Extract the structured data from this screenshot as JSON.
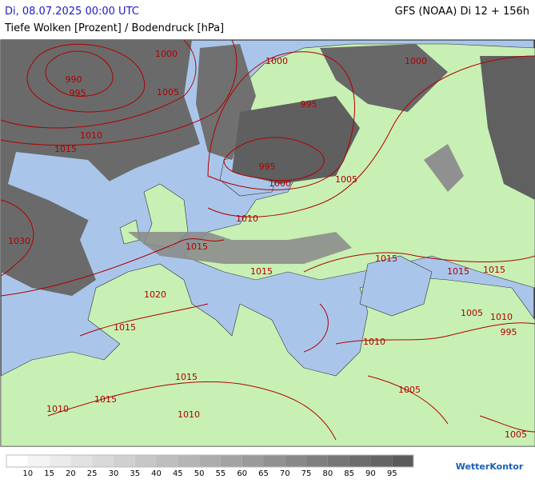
{
  "header": {
    "left": "Di, 08.07.2025 00:00 UTC",
    "right": "GFS (NOAA) Di 12 + 156h",
    "subtitle": "Tiefe Wolken [Prozent] / Bodendruck [hPa]"
  },
  "isobar_labels": [
    1000,
    990,
    995,
    1005,
    1000,
    1000,
    995,
    1010,
    1015,
    995,
    1000,
    1005,
    1010,
    1030,
    1015,
    1015,
    1015,
    1015,
    1015,
    1020,
    1015,
    1005,
    1010,
    995,
    1010,
    1015,
    1015,
    1005,
    1010,
    1010,
    1005
  ],
  "legend": {
    "ticks": [
      10,
      15,
      20,
      25,
      30,
      35,
      40,
      45,
      50,
      55,
      60,
      65,
      70,
      75,
      80,
      85,
      90,
      95
    ],
    "colors": [
      "#ffffff",
      "#f4f4f4",
      "#ebebeb",
      "#e2e2e2",
      "#d9d9d9",
      "#d0d0d0",
      "#c7c7c7",
      "#bebebe",
      "#b5b5b5",
      "#acacac",
      "#a3a3a3",
      "#9a9a9a",
      "#919191",
      "#888888",
      "#7f7f7f",
      "#767676",
      "#6d6d6d",
      "#646464",
      "#5b5b5b"
    ]
  },
  "logo": "WetterKontor"
}
